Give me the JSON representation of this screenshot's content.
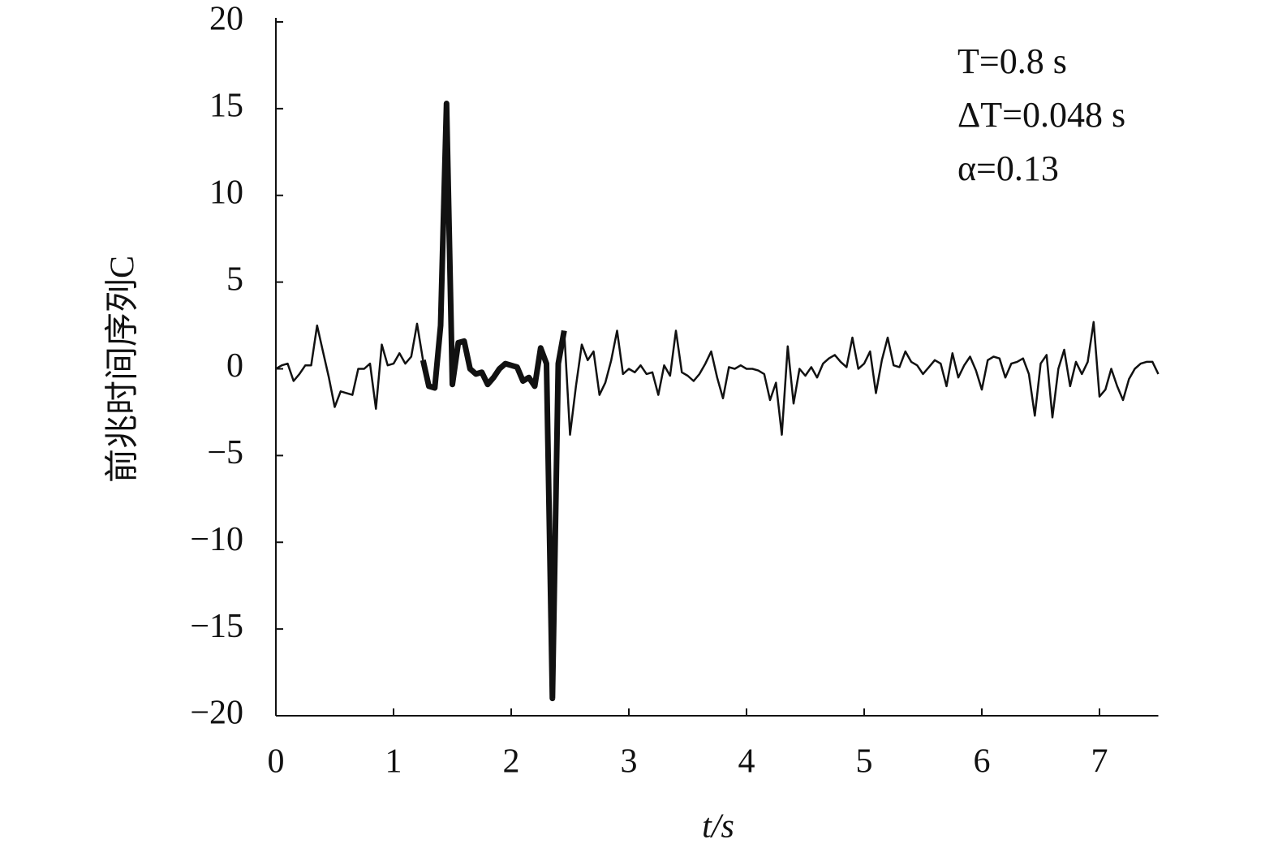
{
  "chart_data": {
    "type": "line",
    "x_label": "t/s",
    "y_label": "前兆时间序列C",
    "annotations": [
      "T=0.8 s",
      "ΔT=0.048 s",
      "α=0.13"
    ],
    "xlim": [
      0,
      7.5
    ],
    "ylim": [
      -20,
      20
    ],
    "xticks": [
      0,
      1,
      2,
      3,
      4,
      5,
      6,
      7
    ],
    "yticks": [
      {
        "value": -20,
        "label": "−20"
      },
      {
        "value": -15,
        "label": "−15"
      },
      {
        "value": -10,
        "label": "−10"
      },
      {
        "value": -5,
        "label": "−5"
      },
      0,
      5,
      10,
      15,
      20
    ],
    "x": [
      0,
      0.05,
      0.1,
      0.15,
      0.2,
      0.25,
      0.3,
      0.35,
      0.4,
      0.45,
      0.5,
      0.55,
      0.6,
      0.65,
      0.7,
      0.75,
      0.8,
      0.85,
      0.9,
      0.95,
      1,
      1.05,
      1.1,
      1.15,
      1.2,
      1.25,
      1.3,
      1.35,
      1.4,
      1.45,
      1.5,
      1.55,
      1.6,
      1.65,
      1.7,
      1.75,
      1.8,
      1.85,
      1.9,
      1.95,
      2,
      2.05,
      2.1,
      2.15,
      2.2,
      2.25,
      2.3,
      2.35,
      2.4,
      2.45,
      2.5,
      2.55,
      2.6,
      2.65,
      2.7,
      2.75,
      2.8,
      2.85,
      2.9,
      2.95,
      3,
      3.05,
      3.1,
      3.15,
      3.2,
      3.25,
      3.3,
      3.35,
      3.4,
      3.45,
      3.5,
      3.55,
      3.6,
      3.65,
      3.7,
      3.75,
      3.8,
      3.85,
      3.9,
      3.95,
      4,
      4.05,
      4.1,
      4.15,
      4.2,
      4.25,
      4.3,
      4.35,
      4.4,
      4.45,
      4.5,
      4.55,
      4.6,
      4.65,
      4.7,
      4.75,
      4.8,
      4.85,
      4.9,
      4.95,
      5,
      5.05,
      5.1,
      5.15,
      5.2,
      5.25,
      5.3,
      5.35,
      5.4,
      5.45,
      5.5,
      5.55,
      5.6,
      5.65,
      5.7,
      5.75,
      5.8,
      5.85,
      5.9,
      5.95,
      6,
      6.05,
      6.1,
      6.15,
      6.2,
      6.25,
      6.3,
      6.35,
      6.4,
      6.45,
      6.5,
      6.55,
      6.6,
      6.65,
      6.7,
      6.75,
      6.8,
      6.85,
      6.9,
      6.95,
      7,
      7.05,
      7.1,
      7.15,
      7.2,
      7.25,
      7.3,
      7.35,
      7.4,
      7.45,
      7.5
    ],
    "series": [
      {
        "color": "#111111",
        "width": 2.5,
        "values": [
          0,
          0.2,
          0.3,
          -0.7,
          -0.3,
          0.2,
          0.2,
          2.5,
          1,
          -0.5,
          -2.2,
          -1.3,
          -1.4,
          -1.5,
          0,
          0,
          0.3,
          -2.3,
          1.4,
          0.2,
          0.3,
          0.9,
          0.3,
          0.7,
          2.6,
          0.5,
          null,
          null,
          null,
          null,
          null,
          null,
          null,
          null,
          null,
          null,
          null,
          null,
          null,
          null,
          null,
          null,
          null,
          null,
          null,
          null,
          null,
          null,
          null,
          2.2,
          -3.8,
          -1,
          1.4,
          0.5,
          1,
          -1.5,
          -0.8,
          0.5,
          2.2,
          -0.3,
          0,
          -0.2,
          0.2,
          -0.3,
          -0.2,
          -1.5,
          0.2,
          -0.4,
          2.2,
          -0.2,
          -0.4,
          -0.7,
          -0.3,
          0.3,
          1,
          -0.5,
          -1.7,
          0.1,
          0,
          0.2,
          0,
          0,
          -0.1,
          -0.3,
          -1.8,
          -0.8,
          -3.8,
          1.3,
          -2,
          0,
          -0.4,
          0.1,
          -0.5,
          0.3,
          0.6,
          0.8,
          0.4,
          0.1,
          1.8,
          0,
          0.3,
          1,
          -1.4,
          0.5,
          1.8,
          0.2,
          0.1,
          1,
          0.4,
          0.2,
          -0.3,
          0.1,
          0.5,
          0.3,
          -1,
          0.9,
          -0.5,
          0.2,
          0.7,
          -0.1,
          -1.2,
          0.5,
          0.7,
          0.6,
          -0.5,
          0.3,
          0.4,
          0.6,
          -0.3,
          -2.7,
          0.3,
          0.8,
          -2.8,
          0,
          1.1,
          -1,
          0.4,
          -0.3,
          0.4,
          2.7,
          -1.6,
          -1.2,
          0,
          -1,
          -1.8,
          -0.6,
          0,
          0.3,
          0.4,
          0.4,
          -0.3
        ]
      },
      {
        "color": "#111111",
        "width": 7,
        "values": [
          null,
          null,
          null,
          null,
          null,
          null,
          null,
          null,
          null,
          null,
          null,
          null,
          null,
          null,
          null,
          null,
          null,
          null,
          null,
          null,
          null,
          null,
          null,
          null,
          null,
          0.5,
          -1,
          -1.1,
          2.5,
          15.3,
          -0.9,
          1.5,
          1.6,
          0,
          -0.3,
          -0.2,
          -0.9,
          -0.5,
          0,
          0.3,
          0.2,
          0.1,
          -0.7,
          -0.5,
          -1,
          1.2,
          0.3,
          -19,
          0.3,
          2.2,
          null,
          null,
          null,
          null,
          null,
          null,
          null,
          null,
          null,
          null,
          null,
          null,
          null,
          null,
          null,
          null,
          null,
          null,
          null,
          null,
          null,
          null,
          null,
          null,
          null,
          null,
          null,
          null,
          null,
          null,
          null,
          null,
          null,
          null,
          null,
          null,
          null,
          null,
          null,
          null,
          null,
          null,
          null,
          null,
          null,
          null,
          null,
          null,
          null,
          null,
          null,
          null,
          null,
          null,
          null,
          null,
          null,
          null,
          null,
          null,
          null,
          null,
          null,
          null,
          null,
          null,
          null,
          null,
          null,
          null,
          null,
          null,
          null,
          null,
          null,
          null,
          null,
          null,
          null,
          null,
          null,
          null,
          null,
          null,
          null,
          null,
          null,
          null,
          null,
          null,
          null,
          null,
          null,
          null,
          null,
          null,
          null,
          null,
          null,
          null,
          null
        ]
      }
    ]
  }
}
